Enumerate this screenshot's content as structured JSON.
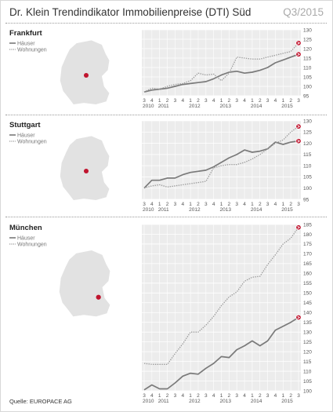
{
  "header": {
    "title": "Dr. Klein Trendindikator Immobilienpreise (DTI) Süd",
    "period": "Q3/2015"
  },
  "source": "Quelle: EUROPACE AG",
  "colors": {
    "haeuser": "#7a7a7a",
    "wohnungen": "#9a9a9a",
    "marker": "#c0152f",
    "plot_bg": "#ececec",
    "map": "#e2e2e2"
  },
  "legend": {
    "haeuser": "Häuser",
    "wohnungen": "Wohnungen"
  },
  "chart_data": [
    {
      "type": "line",
      "title": "Frankfurt",
      "x_quarters": [
        "3",
        "4",
        "1",
        "2",
        "3",
        "4",
        "1",
        "2",
        "3",
        "4",
        "1",
        "2",
        "3",
        "4",
        "1",
        "2",
        "3",
        "4",
        "1",
        "2",
        "3"
      ],
      "x_years": [
        "2010",
        "2011",
        "2012",
        "2013",
        "2014",
        "2015"
      ],
      "ylim": [
        95,
        130
      ],
      "yticks": [
        95,
        100,
        105,
        110,
        115,
        120,
        125,
        130
      ],
      "series": [
        {
          "name": "Häuser",
          "style": "solid",
          "values": [
            97,
            98,
            98.5,
            99,
            100,
            101,
            101.5,
            102,
            102.5,
            104,
            106,
            107.5,
            108,
            107,
            107.5,
            108.5,
            110,
            112.5,
            114,
            115.5,
            117
          ]
        },
        {
          "name": "Wohnungen",
          "style": "dotted",
          "values": [
            97,
            99,
            98.5,
            100,
            101,
            101.5,
            103,
            107,
            106,
            106.5,
            103,
            107,
            115.5,
            115,
            114.5,
            114.5,
            115.5,
            116.5,
            117.5,
            118.5,
            123
          ]
        }
      ]
    },
    {
      "type": "line",
      "title": "Stuttgart",
      "x_quarters": [
        "3",
        "4",
        "1",
        "2",
        "3",
        "4",
        "1",
        "2",
        "3",
        "4",
        "1",
        "2",
        "3",
        "4",
        "1",
        "2",
        "3",
        "4",
        "1",
        "2",
        "3"
      ],
      "x_years": [
        "2010",
        "2011",
        "2012",
        "2013",
        "2014",
        "2015"
      ],
      "ylim": [
        95,
        130
      ],
      "yticks": [
        95,
        100,
        105,
        110,
        115,
        120,
        125,
        130
      ],
      "series": [
        {
          "name": "Häuser",
          "style": "solid",
          "values": [
            100,
            103.5,
            103.5,
            104.5,
            104.5,
            106,
            107,
            107.5,
            108,
            109.5,
            111.5,
            113.5,
            115,
            117,
            116,
            116.5,
            117.5,
            120.5,
            119.5,
            120.5,
            121
          ]
        },
        {
          "name": "Wohnungen",
          "style": "dotted",
          "values": [
            100,
            101,
            101.5,
            100.5,
            101,
            101.5,
            102,
            102.5,
            103,
            109,
            110,
            110.5,
            110.5,
            111.5,
            113,
            115,
            117.5,
            120,
            121.5,
            125,
            127.5
          ]
        }
      ]
    },
    {
      "type": "line",
      "title": "München",
      "x_quarters": [
        "3",
        "4",
        "1",
        "2",
        "3",
        "4",
        "1",
        "2",
        "3",
        "4",
        "1",
        "2",
        "3",
        "4",
        "1",
        "2",
        "3",
        "4",
        "1",
        "2",
        "3"
      ],
      "x_years": [
        "2010",
        "2011",
        "2012",
        "2013",
        "2014",
        "2015"
      ],
      "ylim": [
        100,
        185
      ],
      "yticks": [
        100,
        105,
        110,
        115,
        120,
        125,
        130,
        135,
        140,
        145,
        150,
        155,
        160,
        165,
        170,
        175,
        180,
        185
      ],
      "series": [
        {
          "name": "Häuser",
          "style": "solid",
          "values": [
            100.5,
            103,
            101,
            101,
            104,
            107.5,
            109,
            108.5,
            111.5,
            114,
            117.5,
            117,
            121,
            123,
            125.5,
            123,
            125.5,
            131,
            133,
            135,
            137.5
          ]
        },
        {
          "name": "Wohnungen",
          "style": "dotted",
          "values": [
            114,
            113.5,
            113.5,
            113.5,
            119,
            124,
            130,
            130,
            133.5,
            138,
            143.5,
            148,
            150.5,
            156,
            158,
            158.5,
            164.5,
            169.5,
            175,
            178,
            183.5
          ]
        }
      ]
    }
  ]
}
